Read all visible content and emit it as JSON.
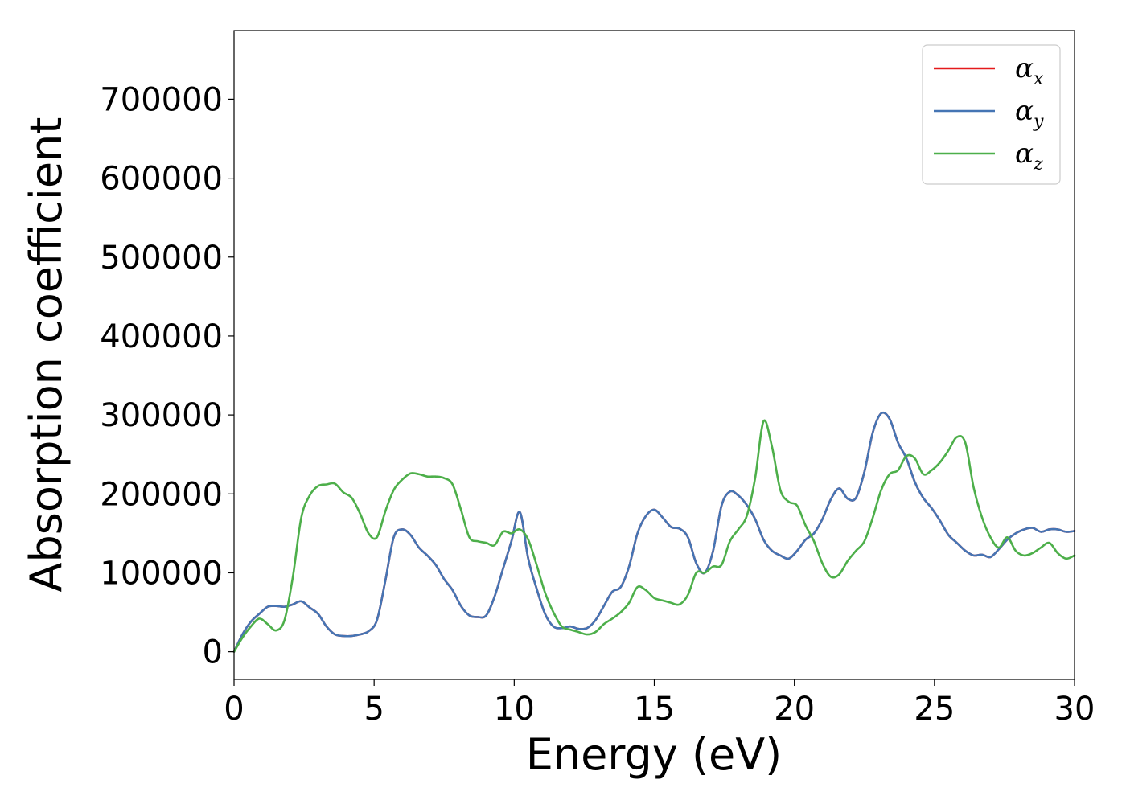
{
  "chart_data": {
    "type": "line",
    "title": "",
    "xlabel": "Energy (eV)",
    "ylabel": "Absorption coefficient",
    "xlim": [
      0,
      30
    ],
    "ylim": [
      -35000,
      787000
    ],
    "xticks": [
      0,
      5,
      10,
      15,
      20,
      25,
      30
    ],
    "yticks": [
      0,
      100000,
      200000,
      300000,
      400000,
      500000,
      600000,
      700000
    ],
    "grid": false,
    "legend_position": "top-right",
    "series": [
      {
        "name": "α_x",
        "label_main": "α",
        "label_sub": "x",
        "color": "#e41a1c",
        "x": [
          0,
          0.3,
          0.6,
          0.9,
          1.2,
          1.5,
          1.8,
          2.1,
          2.4,
          2.7,
          3.0,
          3.3,
          3.6,
          3.9,
          4.2,
          4.5,
          4.8,
          5.1,
          5.4,
          5.7,
          6.0,
          6.3,
          6.6,
          6.9,
          7.2,
          7.5,
          7.8,
          8.1,
          8.4,
          8.7,
          9.0,
          9.3,
          9.6,
          9.9,
          10.2,
          10.5,
          10.8,
          11.1,
          11.4,
          11.7,
          12.0,
          12.3,
          12.6,
          12.9,
          13.2,
          13.5,
          13.8,
          14.1,
          14.4,
          14.7,
          15.0,
          15.3,
          15.6,
          15.9,
          16.2,
          16.5,
          16.8,
          17.1,
          17.4,
          17.7,
          18.0,
          18.3,
          18.6,
          18.9,
          19.2,
          19.5,
          19.8,
          20.1,
          20.4,
          20.7,
          21.0,
          21.3,
          21.6,
          21.9,
          22.2,
          22.5,
          22.8,
          23.1,
          23.4,
          23.7,
          24.0,
          24.3,
          24.6,
          24.9,
          25.2,
          25.5,
          25.8,
          26.1,
          26.4,
          26.7,
          27.0,
          27.3,
          27.6,
          27.9,
          28.2,
          28.5,
          28.8,
          29.1,
          29.4,
          29.7,
          30.0
        ],
        "y": [
          0,
          22000,
          38000,
          48000,
          57000,
          58000,
          57000,
          60000,
          64000,
          56000,
          48000,
          32000,
          22000,
          20000,
          20000,
          22000,
          26000,
          40000,
          90000,
          145000,
          155000,
          148000,
          132000,
          122000,
          110000,
          92000,
          78000,
          58000,
          46000,
          44000,
          46000,
          70000,
          105000,
          140000,
          177000,
          118000,
          80000,
          48000,
          32000,
          30000,
          32000,
          29000,
          30000,
          40000,
          58000,
          76000,
          82000,
          108000,
          150000,
          172000,
          180000,
          170000,
          158000,
          156000,
          145000,
          112000,
          100000,
          128000,
          185000,
          203000,
          198000,
          186000,
          168000,
          142000,
          128000,
          122000,
          118000,
          128000,
          142000,
          150000,
          168000,
          193000,
          207000,
          194000,
          195000,
          228000,
          278000,
          302000,
          295000,
          265000,
          245000,
          215000,
          195000,
          182000,
          166000,
          148000,
          138000,
          128000,
          122000,
          123000,
          120000,
          130000,
          142000,
          150000,
          155000,
          157000,
          152000,
          155000,
          155000,
          152000,
          153000
        ]
      },
      {
        "name": "α_y",
        "label_main": "α",
        "label_sub": "y",
        "color": "#4575b4",
        "x": [
          0,
          0.3,
          0.6,
          0.9,
          1.2,
          1.5,
          1.8,
          2.1,
          2.4,
          2.7,
          3.0,
          3.3,
          3.6,
          3.9,
          4.2,
          4.5,
          4.8,
          5.1,
          5.4,
          5.7,
          6.0,
          6.3,
          6.6,
          6.9,
          7.2,
          7.5,
          7.8,
          8.1,
          8.4,
          8.7,
          9.0,
          9.3,
          9.6,
          9.9,
          10.2,
          10.5,
          10.8,
          11.1,
          11.4,
          11.7,
          12.0,
          12.3,
          12.6,
          12.9,
          13.2,
          13.5,
          13.8,
          14.1,
          14.4,
          14.7,
          15.0,
          15.3,
          15.6,
          15.9,
          16.2,
          16.5,
          16.8,
          17.1,
          17.4,
          17.7,
          18.0,
          18.3,
          18.6,
          18.9,
          19.2,
          19.5,
          19.8,
          20.1,
          20.4,
          20.7,
          21.0,
          21.3,
          21.6,
          21.9,
          22.2,
          22.5,
          22.8,
          23.1,
          23.4,
          23.7,
          24.0,
          24.3,
          24.6,
          24.9,
          25.2,
          25.5,
          25.8,
          26.1,
          26.4,
          26.7,
          27.0,
          27.3,
          27.6,
          27.9,
          28.2,
          28.5,
          28.8,
          29.1,
          29.4,
          29.7,
          30.0
        ],
        "y": [
          0,
          22000,
          38000,
          48000,
          57000,
          58000,
          57000,
          60000,
          64000,
          56000,
          48000,
          32000,
          22000,
          20000,
          20000,
          22000,
          26000,
          40000,
          90000,
          145000,
          155000,
          148000,
          132000,
          122000,
          110000,
          92000,
          78000,
          58000,
          46000,
          44000,
          46000,
          70000,
          105000,
          140000,
          177000,
          118000,
          80000,
          48000,
          32000,
          30000,
          32000,
          29000,
          30000,
          40000,
          58000,
          76000,
          82000,
          108000,
          150000,
          172000,
          180000,
          170000,
          158000,
          156000,
          145000,
          112000,
          100000,
          128000,
          185000,
          203000,
          198000,
          186000,
          168000,
          142000,
          128000,
          122000,
          118000,
          128000,
          142000,
          150000,
          168000,
          193000,
          207000,
          194000,
          195000,
          228000,
          278000,
          302000,
          295000,
          265000,
          245000,
          215000,
          195000,
          182000,
          166000,
          148000,
          138000,
          128000,
          122000,
          123000,
          120000,
          130000,
          142000,
          150000,
          155000,
          157000,
          152000,
          155000,
          155000,
          152000,
          153000
        ]
      },
      {
        "name": "α_z",
        "label_main": "α",
        "label_sub": "z",
        "color": "#4daf4a",
        "x": [
          0,
          0.3,
          0.6,
          0.9,
          1.2,
          1.5,
          1.8,
          2.1,
          2.4,
          2.7,
          3.0,
          3.3,
          3.6,
          3.9,
          4.2,
          4.5,
          4.8,
          5.1,
          5.4,
          5.7,
          6.0,
          6.3,
          6.6,
          6.9,
          7.2,
          7.5,
          7.8,
          8.1,
          8.4,
          8.7,
          9.0,
          9.3,
          9.6,
          9.9,
          10.2,
          10.5,
          10.8,
          11.1,
          11.4,
          11.7,
          12.0,
          12.3,
          12.6,
          12.9,
          13.2,
          13.5,
          13.8,
          14.1,
          14.4,
          14.7,
          15.0,
          15.3,
          15.6,
          15.9,
          16.2,
          16.5,
          16.8,
          17.1,
          17.4,
          17.7,
          18.0,
          18.3,
          18.6,
          18.9,
          19.2,
          19.5,
          19.8,
          20.1,
          20.4,
          20.7,
          21.0,
          21.3,
          21.6,
          21.9,
          22.2,
          22.5,
          22.8,
          23.1,
          23.4,
          23.7,
          24.0,
          24.3,
          24.6,
          24.9,
          25.2,
          25.5,
          25.8,
          26.1,
          26.4,
          26.7,
          27.0,
          27.3,
          27.6,
          27.9,
          28.2,
          28.5,
          28.8,
          29.1,
          29.4,
          29.7,
          30.0
        ],
        "y": [
          0,
          18000,
          32000,
          42000,
          35000,
          27000,
          40000,
          95000,
          170000,
          198000,
          210000,
          212000,
          213000,
          202000,
          195000,
          175000,
          150000,
          145000,
          178000,
          205000,
          218000,
          226000,
          225000,
          222000,
          222000,
          220000,
          212000,
          180000,
          145000,
          140000,
          138000,
          135000,
          152000,
          150000,
          155000,
          142000,
          110000,
          75000,
          50000,
          32000,
          28000,
          25000,
          22000,
          25000,
          35000,
          42000,
          50000,
          62000,
          82000,
          78000,
          68000,
          65000,
          62000,
          60000,
          72000,
          100000,
          100000,
          108000,
          110000,
          140000,
          155000,
          172000,
          220000,
          292000,
          260000,
          205000,
          190000,
          185000,
          160000,
          140000,
          112000,
          95000,
          98000,
          115000,
          128000,
          140000,
          170000,
          205000,
          225000,
          230000,
          248000,
          245000,
          225000,
          230000,
          240000,
          255000,
          272000,
          265000,
          208000,
          170000,
          145000,
          132000,
          145000,
          128000,
          122000,
          125000,
          132000,
          138000,
          125000,
          118000,
          122000
        ]
      }
    ]
  }
}
